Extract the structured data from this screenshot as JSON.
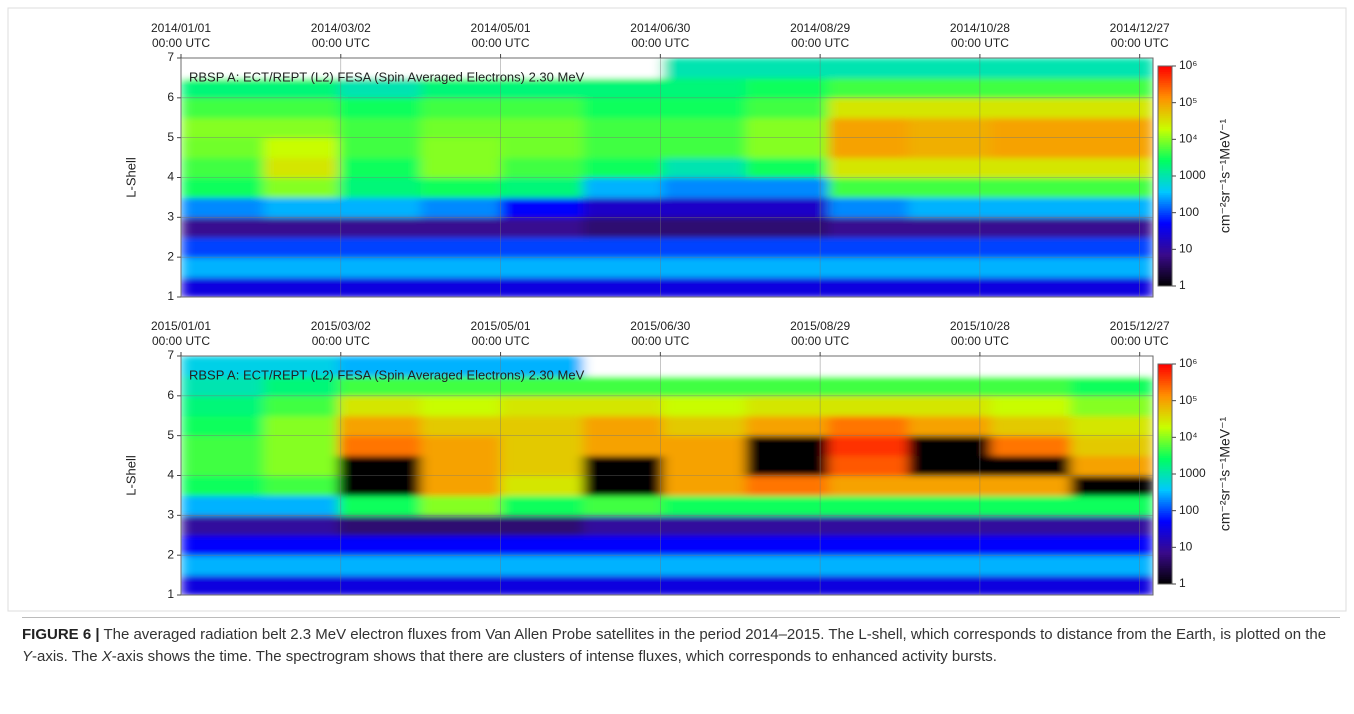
{
  "chart_data": [
    {
      "type": "spectrogram",
      "title": "RBSP A: ECT/REPT (L2) FESA (Spin Averaged Electrons) 2.30 MeV",
      "ylabel": "L-Shell",
      "colorbar_label": "cm⁻²sr⁻¹s⁻¹MeV⁻¹",
      "xlim": [
        "2014-01-01",
        "2015-01-01"
      ],
      "xticks": [
        {
          "value": "2014-01-01",
          "label": "2014/01/01",
          "time": "00:00 UTC"
        },
        {
          "value": "2014-03-02",
          "label": "2014/03/02",
          "time": "00:00 UTC"
        },
        {
          "value": "2014-05-01",
          "label": "2014/05/01",
          "time": "00:00 UTC"
        },
        {
          "value": "2014-06-30",
          "label": "2014/06/30",
          "time": "00:00 UTC"
        },
        {
          "value": "2014-08-29",
          "label": "2014/08/29",
          "time": "00:00 UTC"
        },
        {
          "value": "2014-10-28",
          "label": "2014/10/28",
          "time": "00:00 UTC"
        },
        {
          "value": "2014-12-27",
          "label": "2014/12/27",
          "time": "00:00 UTC"
        }
      ],
      "ylim": [
        1,
        7
      ],
      "yticks": [
        1,
        2,
        3,
        4,
        5,
        6,
        7
      ],
      "grid": true,
      "clim": [
        1,
        1000000
      ],
      "log_color_scale": true,
      "cticks": [
        1,
        10,
        100,
        1000,
        {
          "value": 10000,
          "label": "10⁴"
        },
        {
          "value": 100000,
          "label": "10⁵"
        },
        {
          "value": 1000000,
          "label": "10⁶"
        }
      ],
      "colormap": [
        "#000000",
        "#3a0a8a",
        "#0000ff",
        "#00c8ff",
        "#00ff60",
        "#c8ff00",
        "#ff9000",
        "#ff0000"
      ],
      "over_color": "#000000",
      "null_color": "#ffffff",
      "x": [
        "2014-01-01",
        "2014-02-01",
        "2014-03-01",
        "2014-04-01",
        "2014-05-01",
        "2014-06-01",
        "2014-07-01",
        "2014-08-01",
        "2014-09-01",
        "2014-10-01",
        "2014-11-01",
        "2014-12-01"
      ],
      "y": [
        1,
        1.5,
        2,
        2.5,
        3,
        3.5,
        4,
        4.5,
        5,
        5.5,
        6,
        6.5
      ],
      "z": [
        [
          30,
          30,
          30,
          30,
          30,
          30,
          30,
          30,
          30,
          30,
          30,
          30
        ],
        [
          300,
          300,
          300,
          300,
          300,
          300,
          300,
          300,
          300,
          300,
          300,
          300
        ],
        [
          100,
          100,
          100,
          100,
          100,
          100,
          100,
          100,
          100,
          100,
          100,
          100
        ],
        [
          8,
          8,
          8,
          8,
          8,
          5,
          5,
          5,
          8,
          8,
          8,
          8
        ],
        [
          200,
          300,
          300,
          200,
          50,
          20,
          20,
          20,
          200,
          300,
          300,
          300
        ],
        [
          3000,
          10000,
          2000,
          3000,
          2000,
          300,
          200,
          200,
          5000,
          5000,
          5000,
          5000
        ],
        [
          5000,
          30000,
          3000,
          10000,
          5000,
          3000,
          1000,
          3000,
          30000,
          30000,
          30000,
          30000
        ],
        [
          8000,
          20000,
          5000,
          10000,
          8000,
          5000,
          5000,
          10000,
          100000,
          80000,
          100000,
          100000
        ],
        [
          10000,
          10000,
          5000,
          8000,
          8000,
          5000,
          5000,
          10000,
          100000,
          80000,
          100000,
          100000
        ],
        [
          5000,
          5000,
          3000,
          5000,
          5000,
          3000,
          3000,
          5000,
          30000,
          30000,
          30000,
          30000
        ],
        [
          2000,
          2000,
          1000,
          2000,
          2000,
          2000,
          2000,
          3000,
          5000,
          5000,
          5000,
          5000
        ],
        [
          null,
          null,
          null,
          null,
          null,
          null,
          1000,
          1000,
          1000,
          1000,
          1000,
          1000
        ]
      ]
    },
    {
      "type": "spectrogram",
      "title": "RBSP A: ECT/REPT (L2) FESA (Spin Averaged Electrons) 2.30 MeV",
      "ylabel": "L-Shell",
      "colorbar_label": "cm⁻²sr⁻¹s⁻¹MeV⁻¹",
      "xlim": [
        "2015-01-01",
        "2016-01-01"
      ],
      "xticks": [
        {
          "value": "2015-01-01",
          "label": "2015/01/01",
          "time": "00:00 UTC"
        },
        {
          "value": "2015-03-02",
          "label": "2015/03/02",
          "time": "00:00 UTC"
        },
        {
          "value": "2015-05-01",
          "label": "2015/05/01",
          "time": "00:00 UTC"
        },
        {
          "value": "2015-06-30",
          "label": "2015/06/30",
          "time": "00:00 UTC"
        },
        {
          "value": "2015-08-29",
          "label": "2015/08/29",
          "time": "00:00 UTC"
        },
        {
          "value": "2015-10-28",
          "label": "2015/10/28",
          "time": "00:00 UTC"
        },
        {
          "value": "2015-12-27",
          "label": "2015/12/27",
          "time": "00:00 UTC"
        }
      ],
      "ylim": [
        1,
        7
      ],
      "yticks": [
        1,
        2,
        3,
        4,
        5,
        6,
        7
      ],
      "grid": true,
      "clim": [
        1,
        1000000
      ],
      "log_color_scale": true,
      "cticks": [
        1,
        10,
        100,
        1000,
        {
          "value": 10000,
          "label": "10⁴"
        },
        {
          "value": 100000,
          "label": "10⁵"
        },
        {
          "value": 1000000,
          "label": "10⁶"
        }
      ],
      "colormap": [
        "#000000",
        "#3a0a8a",
        "#0000ff",
        "#00c8ff",
        "#00ff60",
        "#c8ff00",
        "#ff9000",
        "#ff0000"
      ],
      "over_color": "#000000",
      "null_color": "#ffffff",
      "x": [
        "2015-01-01",
        "2015-02-01",
        "2015-03-01",
        "2015-04-01",
        "2015-05-01",
        "2015-06-01",
        "2015-07-01",
        "2015-08-01",
        "2015-09-01",
        "2015-10-01",
        "2015-11-01",
        "2015-12-01"
      ],
      "y": [
        1,
        1.5,
        2,
        2.5,
        3,
        3.5,
        4,
        4.5,
        5,
        5.5,
        6,
        6.5
      ],
      "z": [
        [
          30,
          30,
          30,
          30,
          30,
          30,
          30,
          30,
          30,
          30,
          30,
          30
        ],
        [
          300,
          300,
          300,
          300,
          300,
          300,
          300,
          300,
          300,
          300,
          300,
          300
        ],
        [
          50,
          50,
          50,
          50,
          50,
          50,
          50,
          50,
          50,
          50,
          50,
          50
        ],
        [
          10,
          10,
          5,
          5,
          5,
          10,
          10,
          10,
          10,
          10,
          10,
          10
        ],
        [
          300,
          300,
          3000,
          10000,
          3000,
          5000,
          3000,
          3000,
          3000,
          3000,
          3000,
          3000
        ],
        [
          3000,
          5000,
          2000000,
          100000,
          30000,
          2000000,
          100000,
          200000,
          100000,
          100000,
          100000,
          2000000
        ],
        [
          5000,
          10000,
          2000000,
          100000,
          50000,
          2000000,
          100000,
          2000000,
          300000,
          2000000,
          2000000,
          100000
        ],
        [
          5000,
          10000,
          200000,
          100000,
          50000,
          100000,
          100000,
          2000000,
          500000,
          2000000,
          200000,
          50000
        ],
        [
          3000,
          10000,
          100000,
          50000,
          50000,
          100000,
          50000,
          100000,
          200000,
          100000,
          50000,
          30000
        ],
        [
          2000,
          5000,
          30000,
          20000,
          30000,
          30000,
          20000,
          30000,
          30000,
          30000,
          20000,
          10000
        ],
        [
          1000,
          2000,
          5000,
          5000,
          5000,
          5000,
          5000,
          5000,
          5000,
          5000,
          5000,
          3000
        ],
        [
          500,
          500,
          300,
          300,
          300,
          null,
          null,
          null,
          null,
          null,
          null,
          null
        ]
      ]
    }
  ],
  "caption": {
    "label": "FIGURE 6 |",
    "parts": [
      " The averaged radiation belt 2.3 MeV electron fluxes from Van Allen Probe satellites in the period 2014–2015. The L-shell, which corresponds to distance from the Earth, is plotted on the ",
      "Y",
      "-axis. The ",
      "X",
      "-axis shows the time. The spectrogram shows that there are clusters of intense fluxes, which corresponds to enhanced activity bursts."
    ]
  }
}
